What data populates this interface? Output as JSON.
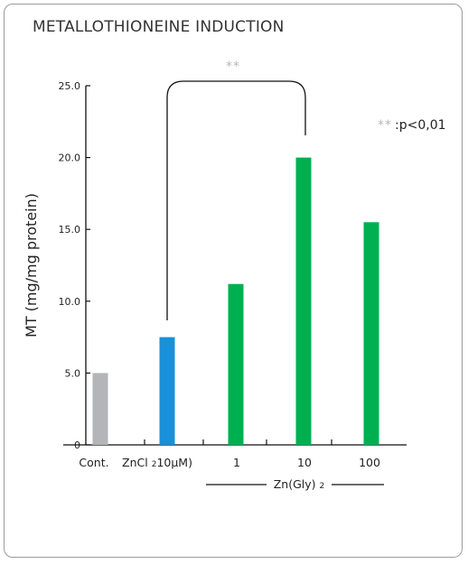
{
  "chart_data": {
    "type": "bar",
    "title": "METALLOTHIONEINE INDUCTION",
    "ylabel": "MT (mg/mg protein)",
    "ylim": [
      0,
      25
    ],
    "yticks": [
      "25.0",
      "20.0",
      "15.0",
      "10.0",
      "5.0",
      "0"
    ],
    "categories": [
      "Cont.",
      "ZnCl 2 10μM)",
      "1",
      "10",
      "100"
    ],
    "values": [
      5.0,
      7.5,
      11.2,
      20.0,
      15.5
    ],
    "colors": [
      "#b3b5b8",
      "#1a90d8",
      "#00b050",
      "#00b050",
      "#00b050"
    ],
    "group_label": "Zn(Gly) 2",
    "significance": {
      "between": [
        "ZnCl 2 10μM)",
        "10"
      ],
      "marker": "**",
      "legend_marker": "**",
      "legend_text": ":p<0,01"
    },
    "grid": false
  }
}
